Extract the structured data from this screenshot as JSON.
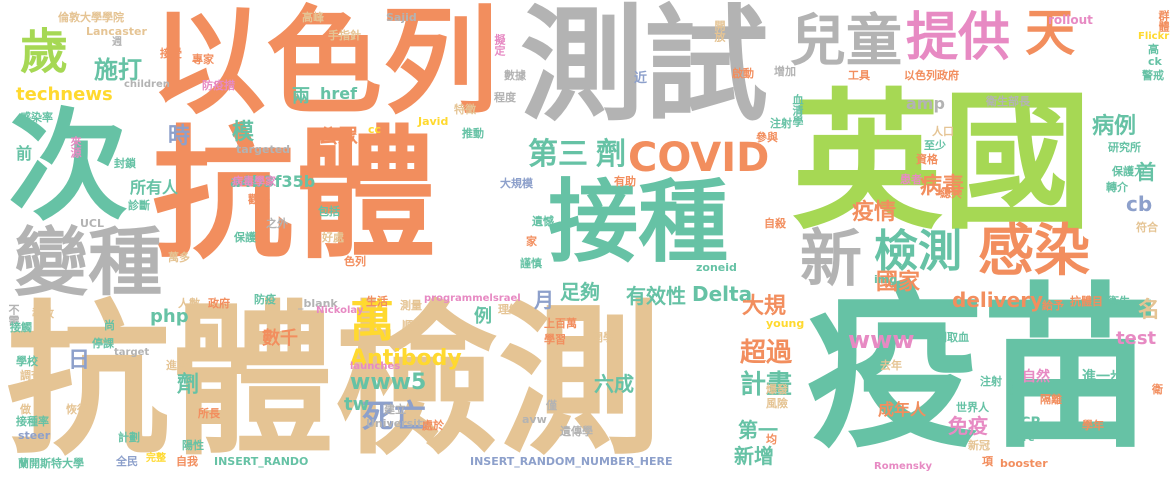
{
  "palette": {
    "orange": "#f28e5e",
    "teal": "#66c2a5",
    "gray": "#b3b3b3",
    "tan": "#e5c494",
    "green": "#a6d854",
    "pink": "#e78ac3",
    "blue": "#8da0cb",
    "yellow": "#ffd92f"
  },
  "words": [
    {
      "text": "抗體檢測",
      "color": "tan"
    },
    {
      "text": "疫苗",
      "color": "teal"
    },
    {
      "text": "抗體",
      "color": "orange"
    },
    {
      "text": "英國",
      "color": "green"
    },
    {
      "text": "次",
      "color": "teal"
    },
    {
      "text": "以色列",
      "color": "orange"
    },
    {
      "text": "測試",
      "color": "gray"
    },
    {
      "text": "接種",
      "color": "teal"
    },
    {
      "text": "變種",
      "color": "gray"
    },
    {
      "text": "歲",
      "color": "green"
    },
    {
      "text": "兒童",
      "color": "gray"
    },
    {
      "text": "提供",
      "color": "pink"
    },
    {
      "text": "天",
      "color": "orange"
    },
    {
      "text": "檢測",
      "color": "teal"
    },
    {
      "text": "感染",
      "color": "orange"
    },
    {
      "text": "新",
      "color": "gray"
    },
    {
      "text": "COVID",
      "color": "orange"
    },
    {
      "text": "第三",
      "color": "teal"
    },
    {
      "text": "劑",
      "color": "teal"
    },
    {
      "text": "萬",
      "color": "yellow"
    },
    {
      "text": "死亡",
      "color": "blue"
    },
    {
      "text": "Antibody",
      "color": "yellow"
    },
    {
      "text": "www5",
      "color": "teal"
    },
    {
      "text": "超過",
      "color": "orange"
    },
    {
      "text": "計畫",
      "color": "teal"
    },
    {
      "text": "www",
      "color": "pink"
    },
    {
      "text": "疫情",
      "color": "orange"
    },
    {
      "text": "國家",
      "color": "orange"
    },
    {
      "text": "病毒",
      "color": "orange"
    },
    {
      "text": "病例",
      "color": "teal"
    },
    {
      "text": "施打",
      "color": "teal"
    },
    {
      "text": "technews",
      "color": "yellow"
    },
    {
      "text": "delivery",
      "color": "orange"
    },
    {
      "text": "Delta",
      "color": "teal"
    },
    {
      "text": "有效性",
      "color": "teal"
    },
    {
      "text": "足夠",
      "color": "teal"
    },
    {
      "text": "月",
      "color": "blue"
    },
    {
      "text": "大規",
      "color": "orange"
    },
    {
      "text": "模",
      "color": "teal"
    },
    {
      "text": "時",
      "color": "blue"
    },
    {
      "text": "公眾",
      "color": "orange"
    },
    {
      "text": "所有人",
      "color": "teal"
    },
    {
      "text": "a4b3f35b",
      "color": "teal"
    },
    {
      "text": "amp",
      "color": "gray"
    },
    {
      "text": "cb",
      "color": "blue"
    },
    {
      "text": "首",
      "color": "teal"
    },
    {
      "text": "名",
      "color": "tan"
    },
    {
      "text": "test",
      "color": "pink"
    },
    {
      "text": "新增",
      "color": "teal"
    },
    {
      "text": "免疫",
      "color": "pink"
    },
    {
      "text": "第一",
      "color": "teal"
    },
    {
      "text": "六成",
      "color": "teal"
    },
    {
      "text": "tw",
      "color": "teal"
    },
    {
      "text": "劑",
      "color": "teal"
    },
    {
      "text": "php",
      "color": "teal"
    },
    {
      "text": "數千",
      "color": "orange"
    },
    {
      "text": "兩",
      "color": "teal"
    },
    {
      "text": "href",
      "color": "teal"
    },
    {
      "text": "日",
      "color": "blue"
    },
    {
      "text": "前",
      "color": "teal"
    },
    {
      "text": "例",
      "color": "teal"
    },
    {
      "text": "成年人",
      "color": "orange"
    },
    {
      "text": "快",
      "color": "teal"
    },
    {
      "text": "自然",
      "color": "pink"
    },
    {
      "text": "進一步",
      "color": "teal"
    },
    {
      "text": "PCR",
      "color": "teal"
    },
    {
      "text": "倫敦大學學院",
      "color": "tan"
    },
    {
      "text": "Lancaster",
      "color": "tan"
    },
    {
      "text": "週",
      "color": "gray"
    },
    {
      "text": "高峰",
      "color": "tan"
    },
    {
      "text": "手指針",
      "color": "tan"
    },
    {
      "text": "Sajid",
      "color": "gray"
    },
    {
      "text": "擬定",
      "color": "pink"
    },
    {
      "text": "開放",
      "color": "tan"
    },
    {
      "text": "rollout",
      "color": "pink"
    },
    {
      "text": "群體",
      "color": "orange"
    },
    {
      "text": "Flickr",
      "color": "yellow"
    },
    {
      "text": "高",
      "color": "teal"
    },
    {
      "text": "ck",
      "color": "teal"
    },
    {
      "text": "警戒",
      "color": "teal"
    },
    {
      "text": "接受",
      "color": "orange"
    },
    {
      "text": "專家",
      "color": "orange"
    },
    {
      "text": "children",
      "color": "gray"
    },
    {
      "text": "防疫措",
      "color": "pink"
    },
    {
      "text": "數據",
      "color": "gray"
    },
    {
      "text": "啟動",
      "color": "orange"
    },
    {
      "text": "增加",
      "color": "gray"
    },
    {
      "text": "工具",
      "color": "orange"
    },
    {
      "text": "以色列政府",
      "color": "orange"
    },
    {
      "text": "近",
      "color": "blue"
    },
    {
      "text": "程度",
      "color": "gray"
    },
    {
      "text": "血清學",
      "color": "teal"
    },
    {
      "text": "衛生部長",
      "color": "gray"
    },
    {
      "text": "感染率",
      "color": "teal"
    },
    {
      "text": "特徵",
      "color": "tan"
    },
    {
      "text": "推動",
      "color": "teal"
    },
    {
      "text": "Javid",
      "color": "yellow"
    },
    {
      "text": "cc",
      "color": "yellow"
    },
    {
      "text": "注射",
      "color": "teal"
    },
    {
      "text": "參與",
      "color": "orange"
    },
    {
      "text": "人口",
      "color": "tan"
    },
    {
      "text": "至少",
      "color": "teal"
    },
    {
      "text": "研究所",
      "color": "teal"
    },
    {
      "text": "保護力",
      "color": "teal"
    },
    {
      "text": "來源",
      "color": "pink"
    },
    {
      "text": "封鎖",
      "color": "teal"
    },
    {
      "text": "targeted",
      "color": "gray"
    },
    {
      "text": "資格",
      "color": "orange"
    },
    {
      "text": "病毒學家",
      "color": "pink"
    },
    {
      "text": "大規模",
      "color": "blue"
    },
    {
      "text": "有助",
      "color": "orange"
    },
    {
      "text": "患者",
      "color": "pink"
    },
    {
      "text": "總共",
      "color": "orange"
    },
    {
      "text": "轉介",
      "color": "teal"
    },
    {
      "text": "診斷",
      "color": "teal"
    },
    {
      "text": "觀察",
      "color": "orange"
    },
    {
      "text": "UCL",
      "color": "gray"
    },
    {
      "text": "之外",
      "color": "gray"
    },
    {
      "text": "包括",
      "color": "teal"
    },
    {
      "text": "遺憾",
      "color": "teal"
    },
    {
      "text": "自殺",
      "color": "orange"
    },
    {
      "text": "符合",
      "color": "tan"
    },
    {
      "text": "保護",
      "color": "teal"
    },
    {
      "text": "好處",
      "color": "tan"
    },
    {
      "text": "家",
      "color": "orange"
    },
    {
      "text": "萬多",
      "color": "tan"
    },
    {
      "text": "色列",
      "color": "orange"
    },
    {
      "text": "謹慎",
      "color": "teal"
    },
    {
      "text": "zoneid",
      "color": "teal"
    },
    {
      "text": "img",
      "color": "teal"
    },
    {
      "text": "抗體目",
      "color": "orange"
    },
    {
      "text": "衛生",
      "color": "teal"
    },
    {
      "text": "給予",
      "color": "orange"
    },
    {
      "text": "人數",
      "color": "tan"
    },
    {
      "text": "政府",
      "color": "orange"
    },
    {
      "text": "防疫",
      "color": "teal"
    },
    {
      "text": "_blank",
      "color": "gray"
    },
    {
      "text": "生活",
      "color": "orange"
    },
    {
      "text": "測量",
      "color": "tan"
    },
    {
      "text": "programmelsrael",
      "color": "pink"
    },
    {
      "text": "不需",
      "color": "gray"
    },
    {
      "text": "導致",
      "color": "tan"
    },
    {
      "text": "接觸",
      "color": "teal"
    },
    {
      "text": "尚",
      "color": "teal"
    },
    {
      "text": "Nickolay",
      "color": "pink"
    },
    {
      "text": "順便",
      "color": "tan"
    },
    {
      "text": "理解",
      "color": "tan"
    },
    {
      "text": "上百萬",
      "color": "orange"
    },
    {
      "text": "young",
      "color": "yellow"
    },
    {
      "text": "刺取血",
      "color": "teal"
    },
    {
      "text": "學校",
      "color": "teal"
    },
    {
      "text": "停課",
      "color": "teal"
    },
    {
      "text": "target",
      "color": "gray"
    },
    {
      "text": "學習",
      "color": "orange"
    },
    {
      "text": "開學",
      "color": "tan"
    },
    {
      "text": "去年",
      "color": "tan"
    },
    {
      "text": "調查",
      "color": "tan"
    },
    {
      "text": "進度",
      "color": "tan"
    },
    {
      "text": "launches",
      "color": "pink"
    },
    {
      "text": "注射",
      "color": "teal"
    },
    {
      "text": "爆發",
      "color": "tan"
    },
    {
      "text": "風險",
      "color": "tan"
    },
    {
      "text": "恢復",
      "color": "tan"
    },
    {
      "text": "做",
      "color": "tan"
    },
    {
      "text": "建立",
      "color": "gray"
    },
    {
      "text": "University",
      "color": "gray"
    },
    {
      "text": "僅",
      "color": "gray"
    },
    {
      "text": "世界人",
      "color": "teal"
    },
    {
      "text": "隔離",
      "color": "orange"
    },
    {
      "text": "接種率",
      "color": "teal"
    },
    {
      "text": "所長",
      "color": "orange"
    },
    {
      "text": "avw",
      "color": "gray"
    },
    {
      "text": "遺傳學",
      "color": "gray"
    },
    {
      "text": "src",
      "color": "teal"
    },
    {
      "text": "學年",
      "color": "orange"
    },
    {
      "text": "steer",
      "color": "blue"
    },
    {
      "text": "計劃",
      "color": "teal"
    },
    {
      "text": "陽性",
      "color": "teal"
    },
    {
      "text": "處於",
      "color": "orange"
    },
    {
      "text": "均",
      "color": "orange"
    },
    {
      "text": "新冠",
      "color": "tan"
    },
    {
      "text": "全民",
      "color": "blue"
    },
    {
      "text": "完整",
      "color": "yellow"
    },
    {
      "text": "自我",
      "color": "orange"
    },
    {
      "text": "INSERT_RANDO",
      "color": "teal"
    },
    {
      "text": "INSERT_RANDOM_NUMBER_HERE",
      "color": "blue"
    },
    {
      "text": "項",
      "color": "orange"
    },
    {
      "text": "蘭開斯特大學",
      "color": "teal"
    },
    {
      "text": "Romensky",
      "color": "pink"
    },
    {
      "text": "booster",
      "color": "orange"
    },
    {
      "text": "衛",
      "color": "orange"
    }
  ]
}
